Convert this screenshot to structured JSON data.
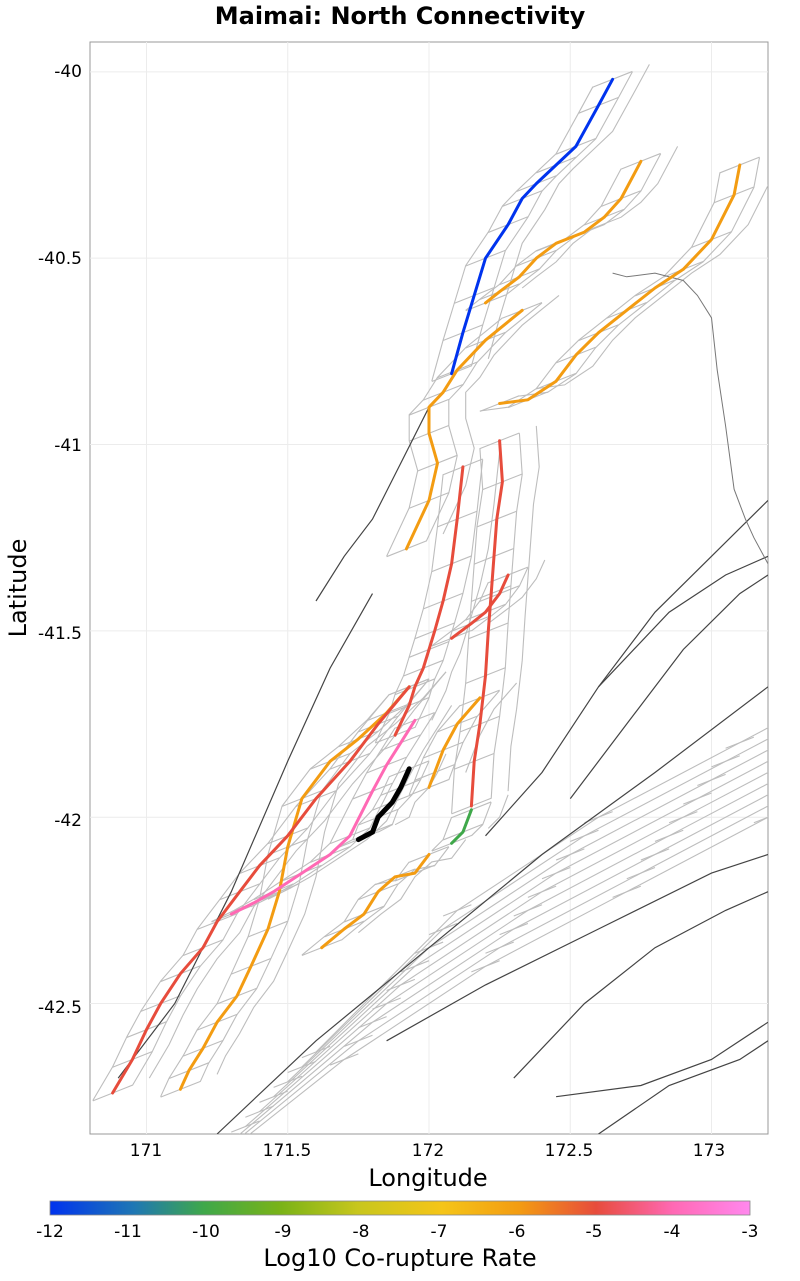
{
  "title": "Maimai: North Connectivity",
  "x_axis": {
    "label": "Longitude",
    "ticks": [
      "171",
      "171.5",
      "172",
      "172.5",
      "173"
    ]
  },
  "y_axis": {
    "label": "Latitude",
    "ticks": [
      "-40",
      "-40.5",
      "-41",
      "-41.5",
      "-42",
      "-42.5"
    ]
  },
  "colorbar": {
    "label": "Log10 Co-rupture Rate",
    "ticks": [
      "-12",
      "-11",
      "-10",
      "-9",
      "-8",
      "-7",
      "-6",
      "-5",
      "-4",
      "-3"
    ],
    "range": [
      -12,
      -3
    ],
    "colors": [
      "#0033ee",
      "#1f77b4",
      "#3fa84a",
      "#7ab317",
      "#c8c61d",
      "#f5c518",
      "#f39c12",
      "#e74c3c",
      "#ff69b4",
      "#ff88ee"
    ]
  },
  "chart_data": {
    "type": "map",
    "title": "Maimai: North Connectivity",
    "xlabel": "Longitude",
    "ylabel": "Latitude",
    "xlim": [
      170.8,
      173.2
    ],
    "ylim": [
      -42.85,
      -39.92
    ],
    "target_fault": {
      "name": "Maimai",
      "color": "#000000",
      "lon": [
        171.75,
        171.8,
        171.82,
        171.87,
        171.9,
        171.93
      ],
      "lat": [
        -42.06,
        -42.04,
        -42.0,
        -41.96,
        -41.92,
        -41.87
      ]
    },
    "ruptures": [
      {
        "name": "blue",
        "color": "#0033ee",
        "log10_rate": -12,
        "lon": [
          172.08,
          172.12,
          172.16,
          172.2,
          172.28,
          172.33,
          172.38,
          172.45,
          172.52,
          172.6,
          172.65
        ],
        "lat": [
          -40.81,
          -40.7,
          -40.6,
          -40.5,
          -40.41,
          -40.34,
          -40.3,
          -40.25,
          -40.2,
          -40.09,
          -40.02
        ]
      },
      {
        "name": "orange-north-1",
        "color": "#f39c12",
        "log10_rate": -6,
        "lon": [
          172.2,
          172.25,
          172.32,
          172.38,
          172.45,
          172.55,
          172.62,
          172.68,
          172.75
        ],
        "lat": [
          -40.62,
          -40.59,
          -40.55,
          -40.5,
          -40.46,
          -40.43,
          -40.39,
          -40.34,
          -40.24
        ]
      },
      {
        "name": "orange-north-2",
        "color": "#f39c12",
        "log10_rate": -6,
        "lon": [
          172.25,
          172.35,
          172.45,
          172.52,
          172.6,
          172.7,
          172.8,
          172.9,
          173.0,
          173.08,
          173.1
        ],
        "lat": [
          -40.89,
          -40.88,
          -40.83,
          -40.76,
          -40.7,
          -40.64,
          -40.58,
          -40.53,
          -40.45,
          -40.33,
          -40.25
        ]
      },
      {
        "name": "orange-long",
        "color": "#f39c12",
        "log10_rate": -6,
        "lon": [
          172.33,
          172.2,
          172.1,
          172.05,
          172.0,
          172.0,
          172.03,
          172.0,
          171.92
        ],
        "lat": [
          -40.64,
          -40.72,
          -40.8,
          -40.86,
          -40.9,
          -40.97,
          -41.05,
          -41.15,
          -41.28
        ]
      },
      {
        "name": "orange-lower",
        "color": "#f39c12",
        "log10_rate": -6,
        "lon": [
          171.93,
          171.85,
          171.75,
          171.65,
          171.55,
          171.5,
          171.47,
          171.43,
          171.37,
          171.32,
          171.25,
          171.2,
          171.15,
          171.12
        ],
        "lat": [
          -41.65,
          -41.72,
          -41.79,
          -41.85,
          -41.95,
          -42.08,
          -42.2,
          -42.3,
          -42.4,
          -42.48,
          -42.55,
          -42.62,
          -42.68,
          -42.73
        ]
      },
      {
        "name": "orange-mid",
        "color": "#f39c12",
        "log10_rate": -6,
        "lon": [
          172.0,
          171.95,
          171.88,
          171.82,
          171.77,
          171.7,
          171.62
        ],
        "lat": [
          -42.1,
          -42.15,
          -42.16,
          -42.2,
          -42.26,
          -42.3,
          -42.35
        ]
      },
      {
        "name": "red-1",
        "color": "#e74c3c",
        "log10_rate": -5,
        "lon": [
          171.93,
          171.82,
          171.72,
          171.6,
          171.5,
          171.4,
          171.33,
          171.25,
          171.2,
          171.12,
          171.05,
          171.0,
          170.95,
          170.88
        ],
        "lat": [
          -41.65,
          -41.75,
          -41.85,
          -41.95,
          -42.05,
          -42.13,
          -42.2,
          -42.28,
          -42.35,
          -42.42,
          -42.5,
          -42.57,
          -42.65,
          -42.74
        ]
      },
      {
        "name": "red-2",
        "color": "#e74c3c",
        "log10_rate": -5,
        "lon": [
          172.12,
          172.1,
          172.08,
          172.05,
          172.02,
          172.0,
          171.98,
          171.95,
          171.93,
          171.88
        ],
        "lat": [
          -41.06,
          -41.2,
          -41.32,
          -41.42,
          -41.5,
          -41.55,
          -41.6,
          -41.65,
          -41.7,
          -41.78
        ]
      },
      {
        "name": "red-3",
        "color": "#e74c3c",
        "log10_rate": -5,
        "lon": [
          172.25,
          172.26,
          172.24,
          172.23,
          172.22,
          172.21,
          172.2,
          172.18,
          172.16,
          172.15
        ],
        "lat": [
          -40.99,
          -41.1,
          -41.2,
          -41.3,
          -41.4,
          -41.5,
          -41.62,
          -41.75,
          -41.85,
          -41.97
        ]
      },
      {
        "name": "red-4",
        "color": "#e74c3c",
        "log10_rate": -5,
        "lon": [
          172.28,
          172.25,
          172.2,
          172.15,
          172.08
        ],
        "lat": [
          -41.35,
          -41.4,
          -41.45,
          -41.48,
          -41.52
        ]
      },
      {
        "name": "green",
        "color": "#3fa84a",
        "log10_rate": -10,
        "lon": [
          172.15,
          172.12,
          172.08
        ],
        "lat": [
          -41.98,
          -42.04,
          -42.07
        ]
      },
      {
        "name": "orange-c",
        "color": "#f39c12",
        "log10_rate": -6,
        "lon": [
          172.18,
          172.1,
          172.05,
          172.02,
          172.0
        ],
        "lat": [
          -41.68,
          -41.75,
          -41.82,
          -41.88,
          -41.92
        ]
      },
      {
        "name": "pink",
        "color": "#ff69b4",
        "log10_rate": -4,
        "lon": [
          171.95,
          171.9,
          171.85,
          171.8,
          171.72,
          171.65,
          171.55,
          171.45,
          171.38,
          171.3
        ],
        "lat": [
          -41.74,
          -41.8,
          -41.86,
          -41.93,
          -42.05,
          -42.1,
          -42.15,
          -42.2,
          -42.23,
          -42.26
        ]
      }
    ],
    "coastline": {
      "lon": [
        172.65,
        172.7,
        172.8,
        172.9,
        172.95,
        173.0,
        173.02,
        173.05,
        173.08,
        173.12,
        173.15,
        173.2
      ],
      "lat": [
        -40.54,
        -40.55,
        -40.54,
        -40.56,
        -40.6,
        -40.66,
        -40.8,
        -40.95,
        -41.12,
        -41.2,
        -41.25,
        -41.32
      ]
    }
  }
}
